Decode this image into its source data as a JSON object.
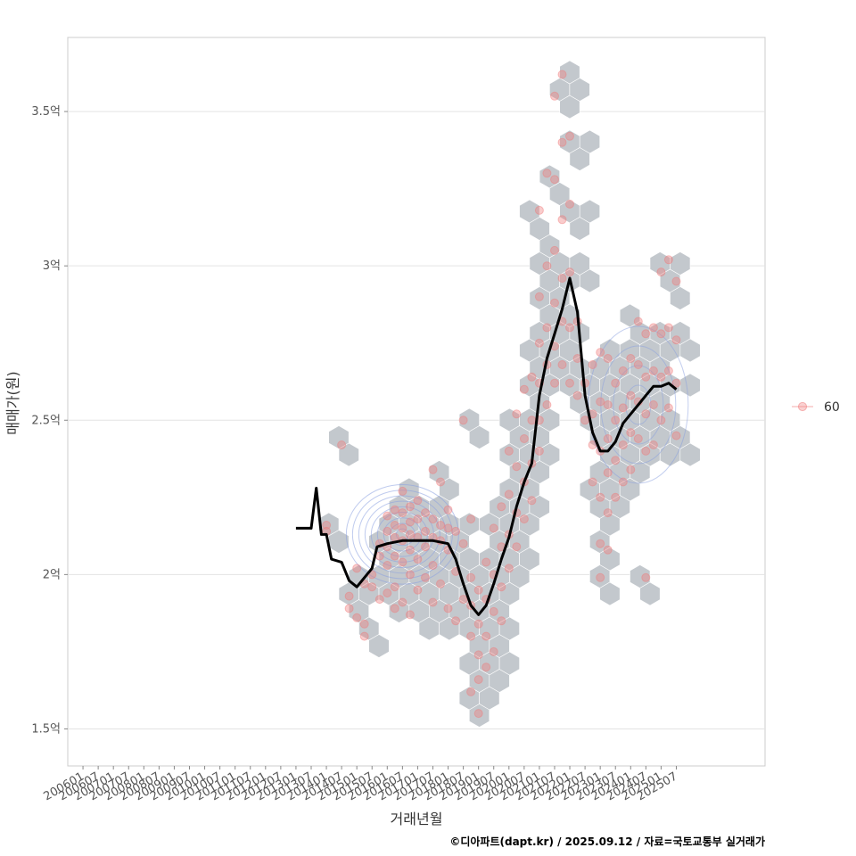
{
  "chart_data": {
    "type": "scatter",
    "xlabel": "거래년월",
    "ylabel": "매매가(원)",
    "caption": "©디아파트(dapt.kr) / 2025.09.12 / 자료=국토교통부 실거래가",
    "x_ticks": [
      "200601",
      "200607",
      "200701",
      "200707",
      "200801",
      "200807",
      "200901",
      "200907",
      "201001",
      "201007",
      "201101",
      "201107",
      "201201",
      "201207",
      "201301",
      "201307",
      "201401",
      "201407",
      "201501",
      "201507",
      "201601",
      "201607",
      "201701",
      "201707",
      "201801",
      "201807",
      "201901",
      "201907",
      "202001",
      "202007",
      "202101",
      "202107",
      "202201",
      "202207",
      "202301",
      "202307",
      "202401",
      "202407",
      "202501",
      "202507"
    ],
    "xlim": [
      "2005-07",
      "2028-06"
    ],
    "y_ticks": [
      {
        "value": 1.5,
        "label": "1.5억"
      },
      {
        "value": 2.0,
        "label": "2억"
      },
      {
        "value": 2.5,
        "label": "2.5억"
      },
      {
        "value": 3.0,
        "label": "3억"
      },
      {
        "value": 3.5,
        "label": "3.5억"
      }
    ],
    "ylim": [
      1.38,
      3.74
    ],
    "y_unit": "억",
    "grid": "horizontal",
    "legend": {
      "position": "right",
      "entries": [
        {
          "label": "60",
          "color": "#f07a7a"
        }
      ]
    },
    "colors": {
      "points": "#f07a7a",
      "hex": "#c3c8cd",
      "trend": "#000000",
      "contour": "#8aa0e0"
    },
    "trend": [
      [
        "2013-01",
        2.15
      ],
      [
        "2013-07",
        2.15
      ],
      [
        "2013-09",
        2.28
      ],
      [
        "2013-11",
        2.13
      ],
      [
        "2014-01",
        2.13
      ],
      [
        "2014-03",
        2.05
      ],
      [
        "2014-07",
        2.04
      ],
      [
        "2014-10",
        1.98
      ],
      [
        "2015-01",
        1.96
      ],
      [
        "2015-04",
        1.99
      ],
      [
        "2015-07",
        2.02
      ],
      [
        "2015-09",
        2.09
      ],
      [
        "2016-01",
        2.1
      ],
      [
        "2016-07",
        2.11
      ],
      [
        "2017-01",
        2.11
      ],
      [
        "2017-07",
        2.11
      ],
      [
        "2018-01",
        2.1
      ],
      [
        "2018-04",
        2.05
      ],
      [
        "2018-07",
        1.97
      ],
      [
        "2018-10",
        1.9
      ],
      [
        "2019-01",
        1.87
      ],
      [
        "2019-04",
        1.9
      ],
      [
        "2019-07",
        1.97
      ],
      [
        "2019-10",
        2.05
      ],
      [
        "2020-01",
        2.12
      ],
      [
        "2020-04",
        2.22
      ],
      [
        "2020-07",
        2.3
      ],
      [
        "2020-10",
        2.36
      ],
      [
        "2021-01",
        2.58
      ],
      [
        "2021-04",
        2.7
      ],
      [
        "2021-07",
        2.78
      ],
      [
        "2021-10",
        2.86
      ],
      [
        "2022-01",
        2.96
      ],
      [
        "2022-04",
        2.85
      ],
      [
        "2022-07",
        2.58
      ],
      [
        "2022-10",
        2.46
      ],
      [
        "2023-01",
        2.4
      ],
      [
        "2023-04",
        2.4
      ],
      [
        "2023-07",
        2.43
      ],
      [
        "2023-10",
        2.49
      ],
      [
        "2024-01",
        2.52
      ],
      [
        "2024-04",
        2.55
      ],
      [
        "2024-07",
        2.58
      ],
      [
        "2024-10",
        2.61
      ],
      [
        "2025-01",
        2.61
      ],
      [
        "2025-04",
        2.62
      ],
      [
        "2025-07",
        2.6
      ]
    ],
    "deals": [
      [
        "2014-01",
        2.16
      ],
      [
        "2014-01",
        2.14
      ],
      [
        "2014-07",
        2.42
      ],
      [
        "2014-10",
        1.93
      ],
      [
        "2014-10",
        1.89
      ],
      [
        "2015-01",
        1.86
      ],
      [
        "2015-01",
        2.02
      ],
      [
        "2015-04",
        1.97
      ],
      [
        "2015-04",
        1.8
      ],
      [
        "2015-04",
        1.84
      ],
      [
        "2015-07",
        2.0
      ],
      [
        "2015-07",
        1.96
      ],
      [
        "2015-10",
        2.1
      ],
      [
        "2015-10",
        2.06
      ],
      [
        "2015-10",
        1.92
      ],
      [
        "2016-01",
        2.19
      ],
      [
        "2016-01",
        2.14
      ],
      [
        "2016-01",
        2.09
      ],
      [
        "2016-01",
        2.03
      ],
      [
        "2016-01",
        1.94
      ],
      [
        "2016-04",
        2.21
      ],
      [
        "2016-04",
        2.16
      ],
      [
        "2016-04",
        2.12
      ],
      [
        "2016-04",
        2.06
      ],
      [
        "2016-04",
        1.96
      ],
      [
        "2016-04",
        1.89
      ],
      [
        "2016-07",
        2.27
      ],
      [
        "2016-07",
        2.2
      ],
      [
        "2016-07",
        2.15
      ],
      [
        "2016-07",
        2.11
      ],
      [
        "2016-07",
        2.04
      ],
      [
        "2016-07",
        1.91
      ],
      [
        "2016-10",
        2.22
      ],
      [
        "2016-10",
        2.17
      ],
      [
        "2016-10",
        2.13
      ],
      [
        "2016-10",
        2.08
      ],
      [
        "2016-10",
        2.0
      ],
      [
        "2016-10",
        1.87
      ],
      [
        "2017-01",
        2.24
      ],
      [
        "2017-01",
        2.18
      ],
      [
        "2017-01",
        2.12
      ],
      [
        "2017-01",
        2.05
      ],
      [
        "2017-01",
        1.95
      ],
      [
        "2017-04",
        2.2
      ],
      [
        "2017-04",
        2.14
      ],
      [
        "2017-04",
        2.09
      ],
      [
        "2017-04",
        1.99
      ],
      [
        "2017-07",
        2.34
      ],
      [
        "2017-07",
        2.18
      ],
      [
        "2017-07",
        2.12
      ],
      [
        "2017-07",
        2.03
      ],
      [
        "2017-07",
        1.91
      ],
      [
        "2017-10",
        2.3
      ],
      [
        "2017-10",
        2.16
      ],
      [
        "2017-10",
        2.11
      ],
      [
        "2017-10",
        1.97
      ],
      [
        "2018-01",
        2.21
      ],
      [
        "2018-01",
        2.15
      ],
      [
        "2018-01",
        2.08
      ],
      [
        "2018-01",
        1.89
      ],
      [
        "2018-04",
        2.14
      ],
      [
        "2018-04",
        2.01
      ],
      [
        "2018-04",
        1.85
      ],
      [
        "2018-07",
        2.5
      ],
      [
        "2018-07",
        2.1
      ],
      [
        "2018-07",
        1.92
      ],
      [
        "2018-10",
        2.18
      ],
      [
        "2018-10",
        1.99
      ],
      [
        "2018-10",
        1.9
      ],
      [
        "2018-10",
        1.8
      ],
      [
        "2018-10",
        1.62
      ],
      [
        "2019-01",
        1.95
      ],
      [
        "2019-01",
        1.84
      ],
      [
        "2019-01",
        1.74
      ],
      [
        "2019-01",
        1.66
      ],
      [
        "2019-01",
        1.55
      ],
      [
        "2019-04",
        2.04
      ],
      [
        "2019-04",
        1.92
      ],
      [
        "2019-04",
        1.8
      ],
      [
        "2019-04",
        1.7
      ],
      [
        "2019-07",
        2.15
      ],
      [
        "2019-07",
        2.0
      ],
      [
        "2019-07",
        1.88
      ],
      [
        "2019-07",
        1.75
      ],
      [
        "2019-10",
        2.22
      ],
      [
        "2019-10",
        2.09
      ],
      [
        "2019-10",
        1.96
      ],
      [
        "2019-10",
        1.85
      ],
      [
        "2020-01",
        2.4
      ],
      [
        "2020-01",
        2.26
      ],
      [
        "2020-01",
        2.13
      ],
      [
        "2020-01",
        2.02
      ],
      [
        "2020-04",
        2.52
      ],
      [
        "2020-04",
        2.35
      ],
      [
        "2020-04",
        2.2
      ],
      [
        "2020-04",
        2.09
      ],
      [
        "2020-07",
        2.6
      ],
      [
        "2020-07",
        2.44
      ],
      [
        "2020-07",
        2.3
      ],
      [
        "2020-07",
        2.18
      ],
      [
        "2020-10",
        2.64
      ],
      [
        "2020-10",
        2.5
      ],
      [
        "2020-10",
        2.36
      ],
      [
        "2020-10",
        2.24
      ],
      [
        "2021-01",
        3.18
      ],
      [
        "2021-01",
        2.9
      ],
      [
        "2021-01",
        2.75
      ],
      [
        "2021-01",
        2.62
      ],
      [
        "2021-01",
        2.5
      ],
      [
        "2021-01",
        2.4
      ],
      [
        "2021-04",
        3.3
      ],
      [
        "2021-04",
        3.0
      ],
      [
        "2021-04",
        2.8
      ],
      [
        "2021-04",
        2.68
      ],
      [
        "2021-04",
        2.55
      ],
      [
        "2021-07",
        3.55
      ],
      [
        "2021-07",
        3.28
      ],
      [
        "2021-07",
        3.05
      ],
      [
        "2021-07",
        2.88
      ],
      [
        "2021-07",
        2.74
      ],
      [
        "2021-07",
        2.62
      ],
      [
        "2021-10",
        3.62
      ],
      [
        "2021-10",
        3.4
      ],
      [
        "2021-10",
        3.15
      ],
      [
        "2021-10",
        2.96
      ],
      [
        "2021-10",
        2.82
      ],
      [
        "2021-10",
        2.68
      ],
      [
        "2022-01",
        3.42
      ],
      [
        "2022-01",
        3.2
      ],
      [
        "2022-01",
        2.98
      ],
      [
        "2022-01",
        2.8
      ],
      [
        "2022-01",
        2.62
      ],
      [
        "2022-04",
        2.82
      ],
      [
        "2022-04",
        2.7
      ],
      [
        "2022-04",
        2.58
      ],
      [
        "2022-07",
        2.62
      ],
      [
        "2022-07",
        2.5
      ],
      [
        "2022-10",
        2.68
      ],
      [
        "2022-10",
        2.52
      ],
      [
        "2022-10",
        2.42
      ],
      [
        "2022-10",
        2.3
      ],
      [
        "2023-01",
        2.72
      ],
      [
        "2023-01",
        2.56
      ],
      [
        "2023-01",
        2.4
      ],
      [
        "2023-01",
        2.25
      ],
      [
        "2023-01",
        2.1
      ],
      [
        "2023-01",
        1.99
      ],
      [
        "2023-04",
        2.7
      ],
      [
        "2023-04",
        2.55
      ],
      [
        "2023-04",
        2.44
      ],
      [
        "2023-04",
        2.33
      ],
      [
        "2023-04",
        2.2
      ],
      [
        "2023-04",
        2.08
      ],
      [
        "2023-07",
        2.62
      ],
      [
        "2023-07",
        2.5
      ],
      [
        "2023-07",
        2.37
      ],
      [
        "2023-07",
        2.25
      ],
      [
        "2023-10",
        2.66
      ],
      [
        "2023-10",
        2.54
      ],
      [
        "2023-10",
        2.42
      ],
      [
        "2023-10",
        2.3
      ],
      [
        "2024-01",
        2.7
      ],
      [
        "2024-01",
        2.58
      ],
      [
        "2024-01",
        2.46
      ],
      [
        "2024-01",
        2.34
      ],
      [
        "2024-04",
        2.82
      ],
      [
        "2024-04",
        2.68
      ],
      [
        "2024-04",
        2.56
      ],
      [
        "2024-04",
        2.44
      ],
      [
        "2024-07",
        2.78
      ],
      [
        "2024-07",
        2.64
      ],
      [
        "2024-07",
        2.52
      ],
      [
        "2024-07",
        2.4
      ],
      [
        "2024-07",
        1.99
      ],
      [
        "2024-10",
        2.8
      ],
      [
        "2024-10",
        2.66
      ],
      [
        "2024-10",
        2.55
      ],
      [
        "2024-10",
        2.42
      ],
      [
        "2025-01",
        2.98
      ],
      [
        "2025-01",
        2.78
      ],
      [
        "2025-01",
        2.64
      ],
      [
        "2025-01",
        2.5
      ],
      [
        "2025-04",
        3.02
      ],
      [
        "2025-04",
        2.8
      ],
      [
        "2025-04",
        2.66
      ],
      [
        "2025-04",
        2.54
      ],
      [
        "2025-07",
        2.95
      ],
      [
        "2025-07",
        2.76
      ],
      [
        "2025-07",
        2.62
      ],
      [
        "2025-07",
        2.45
      ]
    ]
  }
}
